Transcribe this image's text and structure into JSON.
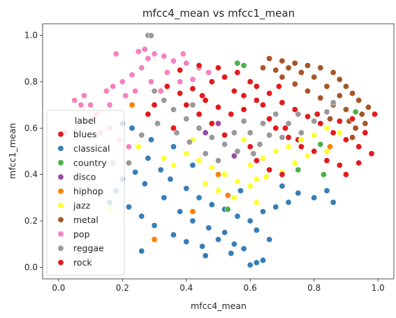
{
  "chart_data": {
    "type": "scatter",
    "title": "mfcc4_mean vs mfcc1_mean",
    "xlabel": "mfcc4_mean",
    "ylabel": "mfcc1_mean",
    "xlim": [
      -0.05,
      1.05
    ],
    "ylim": [
      -0.05,
      1.05
    ],
    "xticks": [
      "0.0",
      "0.2",
      "0.4",
      "0.6",
      "0.8",
      "1.0"
    ],
    "xtick_values": [
      0.0,
      0.2,
      0.4,
      0.6,
      0.8,
      1.0
    ],
    "yticks": [
      "0.0",
      "0.2",
      "0.4",
      "0.6",
      "0.8",
      "1.0"
    ],
    "ytick_values": [
      0.0,
      0.2,
      0.4,
      0.6,
      0.8,
      1.0
    ],
    "grid": false,
    "legend": {
      "title": "label",
      "placement": "center-left"
    },
    "series": [
      {
        "name": "blues",
        "color": "#e41a1c",
        "points": [
          [
            0.48,
            0.8
          ],
          [
            0.55,
            0.76
          ],
          [
            0.62,
            0.72
          ],
          [
            0.58,
            0.68
          ],
          [
            0.66,
            0.64
          ],
          [
            0.71,
            0.6
          ],
          [
            0.52,
            0.57
          ],
          [
            0.75,
            0.55
          ],
          [
            0.45,
            0.74
          ],
          [
            0.69,
            0.78
          ],
          [
            0.81,
            0.66
          ],
          [
            0.6,
            0.52
          ]
        ]
      },
      {
        "name": "classical",
        "color": "#377eb8",
        "points": [
          [
            0.18,
            0.33
          ],
          [
            0.22,
            0.26
          ],
          [
            0.26,
            0.22
          ],
          [
            0.3,
            0.18
          ],
          [
            0.36,
            0.14
          ],
          [
            0.4,
            0.11
          ],
          [
            0.45,
            0.09
          ],
          [
            0.5,
            0.12
          ],
          [
            0.55,
            0.1
          ],
          [
            0.58,
            0.08
          ],
          [
            0.62,
            0.02
          ],
          [
            0.64,
            0.03
          ],
          [
            0.6,
            0.01
          ],
          [
            0.2,
            0.62
          ],
          [
            0.23,
            0.6
          ],
          [
            0.28,
            0.47
          ],
          [
            0.32,
            0.42
          ],
          [
            0.35,
            0.38
          ],
          [
            0.4,
            0.34
          ],
          [
            0.44,
            0.3
          ],
          [
            0.48,
            0.27
          ],
          [
            0.52,
            0.25
          ],
          [
            0.56,
            0.22
          ],
          [
            0.6,
            0.2
          ],
          [
            0.64,
            0.24
          ],
          [
            0.68,
            0.26
          ],
          [
            0.72,
            0.28
          ],
          [
            0.33,
            0.3
          ],
          [
            0.38,
            0.24
          ],
          [
            0.42,
            0.2
          ],
          [
            0.47,
            0.17
          ],
          [
            0.52,
            0.15
          ],
          [
            0.27,
            0.36
          ],
          [
            0.24,
            0.41
          ],
          [
            0.29,
            0.55
          ],
          [
            0.26,
            0.07
          ],
          [
            0.16,
            0.28
          ],
          [
            0.2,
            0.38
          ],
          [
            0.36,
            0.52
          ],
          [
            0.42,
            0.44
          ],
          [
            0.5,
            0.4
          ],
          [
            0.57,
            0.33
          ],
          [
            0.62,
            0.16
          ],
          [
            0.66,
            0.12
          ],
          [
            0.46,
            0.05
          ],
          [
            0.54,
            0.06
          ],
          [
            0.7,
            0.35
          ],
          [
            0.75,
            0.32
          ],
          [
            0.8,
            0.3
          ],
          [
            0.86,
            0.28
          ],
          [
            0.84,
            0.33
          ]
        ]
      },
      {
        "name": "country",
        "color": "#4daf4a",
        "points": [
          [
            0.56,
            0.88
          ],
          [
            0.58,
            0.87
          ],
          [
            0.82,
            0.53
          ],
          [
            0.93,
            0.67
          ],
          [
            0.53,
            0.25
          ],
          [
            0.75,
            0.42
          ],
          [
            0.83,
            0.4
          ]
        ]
      },
      {
        "name": "disco",
        "color": "#984ea3",
        "points": [
          [
            0.5,
            0.62
          ],
          [
            0.46,
            0.58
          ],
          [
            0.55,
            0.48
          ]
        ]
      },
      {
        "name": "hiphop",
        "color": "#ff7f00",
        "points": [
          [
            0.23,
            0.7
          ],
          [
            0.3,
            0.12
          ],
          [
            0.42,
            0.24
          ],
          [
            0.85,
            0.52
          ],
          [
            0.53,
            0.31
          ],
          [
            0.5,
            0.4
          ]
        ]
      },
      {
        "name": "jazz",
        "color": "#ffff33",
        "points": [
          [
            0.4,
            0.49
          ],
          [
            0.44,
            0.46
          ],
          [
            0.48,
            0.43
          ],
          [
            0.52,
            0.4
          ],
          [
            0.56,
            0.37
          ],
          [
            0.6,
            0.44
          ],
          [
            0.64,
            0.47
          ],
          [
            0.68,
            0.5
          ],
          [
            0.72,
            0.52
          ],
          [
            0.76,
            0.55
          ],
          [
            0.8,
            0.57
          ],
          [
            0.84,
            0.6
          ],
          [
            0.88,
            0.58
          ],
          [
            0.46,
            0.36
          ],
          [
            0.5,
            0.33
          ],
          [
            0.55,
            0.3
          ],
          [
            0.6,
            0.35
          ],
          [
            0.65,
            0.39
          ],
          [
            0.7,
            0.41
          ],
          [
            0.36,
            0.44
          ],
          [
            0.33,
            0.47
          ],
          [
            0.42,
            0.55
          ],
          [
            0.58,
            0.55
          ],
          [
            0.62,
            0.28
          ],
          [
            0.25,
            0.52
          ],
          [
            0.78,
            0.48
          ],
          [
            0.84,
            0.5
          ],
          [
            0.16,
            0.25
          ],
          [
            0.62,
            0.38
          ],
          [
            0.74,
            0.45
          ]
        ]
      },
      {
        "name": "metal",
        "color": "#a65628",
        "points": [
          [
            0.66,
            0.9
          ],
          [
            0.7,
            0.89
          ],
          [
            0.74,
            0.88
          ],
          [
            0.78,
            0.87
          ],
          [
            0.82,
            0.86
          ],
          [
            0.86,
            0.84
          ],
          [
            0.88,
            0.81
          ],
          [
            0.9,
            0.78
          ],
          [
            0.92,
            0.75
          ],
          [
            0.94,
            0.72
          ],
          [
            0.9,
            0.68
          ],
          [
            0.86,
            0.7
          ],
          [
            0.82,
            0.73
          ],
          [
            0.78,
            0.76
          ],
          [
            0.74,
            0.79
          ],
          [
            0.7,
            0.82
          ],
          [
            0.95,
            0.66
          ],
          [
            0.96,
            0.62
          ],
          [
            0.93,
            0.6
          ],
          [
            0.92,
            0.56
          ],
          [
            0.64,
            0.86
          ],
          [
            0.68,
            0.85
          ],
          [
            0.8,
            0.82
          ],
          [
            0.84,
            0.78
          ],
          [
            0.88,
            0.74
          ],
          [
            0.76,
            0.84
          ],
          [
            0.72,
            0.86
          ],
          [
            0.97,
            0.69
          ],
          [
            0.91,
            0.63
          ],
          [
            0.85,
            0.64
          ]
        ]
      },
      {
        "name": "pop",
        "color": "#f781bf",
        "points": [
          [
            0.05,
            0.72
          ],
          [
            0.08,
            0.74
          ],
          [
            0.1,
            0.7
          ],
          [
            0.12,
            0.66
          ],
          [
            0.16,
            0.6
          ],
          [
            0.19,
            0.55
          ],
          [
            0.22,
            0.52
          ],
          [
            0.17,
            0.78
          ],
          [
            0.2,
            0.8
          ],
          [
            0.23,
            0.83
          ],
          [
            0.26,
            0.86
          ],
          [
            0.28,
            0.9
          ],
          [
            0.3,
            0.92
          ],
          [
            0.33,
            0.91
          ],
          [
            0.36,
            0.89
          ],
          [
            0.4,
            0.88
          ],
          [
            0.44,
            0.86
          ],
          [
            0.47,
            0.84
          ],
          [
            0.25,
            0.93
          ],
          [
            0.27,
            0.94
          ],
          [
            0.18,
            0.92
          ],
          [
            0.15,
            0.76
          ],
          [
            0.11,
            0.64
          ],
          [
            0.13,
            0.58
          ],
          [
            0.21,
            0.74
          ],
          [
            0.24,
            0.76
          ],
          [
            0.29,
            0.8
          ],
          [
            0.34,
            0.84
          ],
          [
            0.07,
            0.7
          ],
          [
            0.39,
            0.92
          ],
          [
            0.38,
            0.8
          ],
          [
            0.32,
            0.76
          ],
          [
            0.02,
            0.58
          ],
          [
            0.16,
            0.7
          ],
          [
            0.42,
            0.81
          ]
        ]
      },
      {
        "name": "reggae",
        "color": "#999999",
        "points": [
          [
            0.28,
            1.0
          ],
          [
            0.29,
            0.999
          ],
          [
            0.3,
            0.76
          ],
          [
            0.33,
            0.72
          ],
          [
            0.36,
            0.68
          ],
          [
            0.4,
            0.64
          ],
          [
            0.44,
            0.6
          ],
          [
            0.48,
            0.56
          ],
          [
            0.52,
            0.53
          ],
          [
            0.56,
            0.5
          ],
          [
            0.6,
            0.58
          ],
          [
            0.64,
            0.62
          ],
          [
            0.68,
            0.66
          ],
          [
            0.72,
            0.62
          ],
          [
            0.76,
            0.58
          ],
          [
            0.8,
            0.63
          ],
          [
            0.84,
            0.67
          ],
          [
            0.37,
            0.58
          ],
          [
            0.41,
            0.54
          ],
          [
            0.46,
            0.49
          ],
          [
            0.5,
            0.46
          ],
          [
            0.55,
            0.58
          ],
          [
            0.63,
            0.53
          ],
          [
            0.7,
            0.56
          ],
          [
            0.75,
            0.66
          ],
          [
            0.26,
            0.57
          ],
          [
            0.31,
            0.62
          ],
          [
            0.58,
            0.63
          ],
          [
            0.66,
            0.57
          ],
          [
            0.42,
            0.7
          ],
          [
            0.86,
            0.71
          ],
          [
            0.17,
            0.45
          ],
          [
            0.22,
            0.45
          ],
          [
            0.61,
            0.49
          ]
        ]
      },
      {
        "name": "rock",
        "color": "#e41a1c",
        "points": [
          [
            0.34,
            0.78
          ],
          [
            0.38,
            0.75
          ],
          [
            0.42,
            0.77
          ],
          [
            0.46,
            0.72
          ],
          [
            0.5,
            0.69
          ],
          [
            0.54,
            0.66
          ],
          [
            0.58,
            0.74
          ],
          [
            0.62,
            0.78
          ],
          [
            0.66,
            0.75
          ],
          [
            0.7,
            0.71
          ],
          [
            0.74,
            0.68
          ],
          [
            0.78,
            0.65
          ],
          [
            0.82,
            0.62
          ],
          [
            0.86,
            0.58
          ],
          [
            0.9,
            0.55
          ],
          [
            0.94,
            0.52
          ],
          [
            0.98,
            0.49
          ],
          [
            0.99,
            0.66
          ],
          [
            0.96,
            0.58
          ],
          [
            0.92,
            0.64
          ],
          [
            0.88,
            0.63
          ],
          [
            0.52,
            0.82
          ],
          [
            0.56,
            0.84
          ],
          [
            0.6,
            0.8
          ],
          [
            0.64,
            0.7
          ],
          [
            0.68,
            0.6
          ],
          [
            0.72,
            0.56
          ],
          [
            0.76,
            0.52
          ],
          [
            0.8,
            0.5
          ],
          [
            0.84,
            0.46
          ],
          [
            0.88,
            0.44
          ],
          [
            0.44,
            0.66
          ],
          [
            0.4,
            0.7
          ],
          [
            0.36,
            0.6
          ],
          [
            0.48,
            0.62
          ],
          [
            0.62,
            0.46
          ],
          [
            0.66,
            0.42
          ],
          [
            0.7,
            0.4
          ],
          [
            0.38,
            0.85
          ],
          [
            0.44,
            0.87
          ],
          [
            0.5,
            0.86
          ],
          [
            0.3,
            0.7
          ],
          [
            0.28,
            0.66
          ],
          [
            0.94,
            0.45
          ],
          [
            0.9,
            0.4
          ]
        ]
      }
    ]
  }
}
